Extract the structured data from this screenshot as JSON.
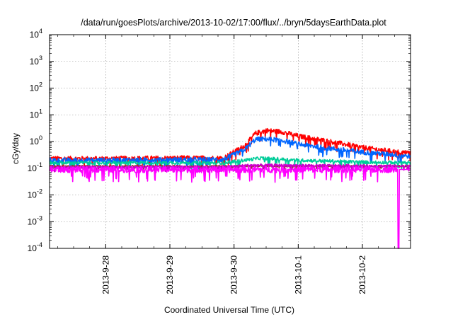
{
  "chart_data": {
    "type": "line",
    "title": "/data/run/goesPlots/archive/2013-10-02/17:00/flux/../bryn/5daysEarthData.plot",
    "xlabel": "Coordinated Universal Time (UTC)",
    "ylabel": "cGy/day",
    "y_scale": "log",
    "ylim": [
      0.0001,
      10000
    ],
    "xlim": [
      "2013-09-27T03:00",
      "2013-10-02T18:00"
    ],
    "x_ticks": [
      "2013-9-28",
      "2013-9-29",
      "2013-9-30",
      "2013-10-1",
      "2013-10-2"
    ],
    "y_ticks": [
      {
        "base": "10",
        "exp": "-4"
      },
      {
        "base": "10",
        "exp": "-3"
      },
      {
        "base": "10",
        "exp": "-2"
      },
      {
        "base": "10",
        "exp": "-1"
      },
      {
        "base": "10",
        "exp": "0"
      },
      {
        "base": "10",
        "exp": "1"
      },
      {
        "base": "10",
        "exp": "2"
      },
      {
        "base": "10",
        "exp": "3"
      },
      {
        "base": "10",
        "exp": "4"
      }
    ],
    "grid": true,
    "series": [
      {
        "color": "#ff0000",
        "noise": 0.09,
        "x": [
          "2013-09-27T03:00",
          "2013-09-28T00:00",
          "2013-09-29T00:00",
          "2013-09-29T20:00",
          "2013-09-30T04:00",
          "2013-09-30T08:00",
          "2013-09-30T12:00",
          "2013-09-30T18:00",
          "2013-10-01T00:00",
          "2013-10-01T12:00",
          "2013-10-02T00:00",
          "2013-10-02T12:00",
          "2013-10-02T18:00"
        ],
        "y": [
          0.23,
          0.23,
          0.24,
          0.24,
          0.7,
          2.0,
          2.6,
          2.3,
          1.6,
          1.0,
          0.6,
          0.42,
          0.38
        ]
      },
      {
        "color": "#0066ff",
        "noise": 0.09,
        "x": [
          "2013-09-27T03:00",
          "2013-09-28T00:00",
          "2013-09-29T00:00",
          "2013-09-29T20:00",
          "2013-09-30T04:00",
          "2013-09-30T08:00",
          "2013-09-30T12:00",
          "2013-09-30T18:00",
          "2013-10-01T00:00",
          "2013-10-01T12:00",
          "2013-10-02T00:00",
          "2013-10-02T12:00",
          "2013-10-02T18:00"
        ],
        "y": [
          0.2,
          0.2,
          0.21,
          0.21,
          0.5,
          1.2,
          1.25,
          1.1,
          0.8,
          0.55,
          0.4,
          0.32,
          0.28
        ]
      },
      {
        "color": "#00cc99",
        "noise": 0.06,
        "x": [
          "2013-09-27T03:00",
          "2013-09-29T20:00",
          "2013-09-30T04:00",
          "2013-09-30T10:00",
          "2013-10-01T00:00",
          "2013-10-02T00:00",
          "2013-10-02T18:00"
        ],
        "y": [
          0.16,
          0.16,
          0.2,
          0.24,
          0.2,
          0.17,
          0.16
        ]
      },
      {
        "color": "#993333",
        "noise": 0.03,
        "x": [
          "2013-09-27T03:00",
          "2013-10-02T18:00"
        ],
        "y": [
          0.12,
          0.12
        ]
      },
      {
        "color": "#cc00cc",
        "noise": 0.05,
        "x": [
          "2013-09-27T03:00",
          "2013-09-29T20:00",
          "2013-09-30T06:00",
          "2013-10-02T18:00"
        ],
        "y": [
          0.11,
          0.11,
          0.13,
          0.12
        ]
      },
      {
        "color": "#ff00ff",
        "noise": 0.12,
        "x": [
          "2013-09-27T03:00",
          "2013-10-02T12:00",
          "2013-10-02T13:00",
          "2013-10-02T13:30",
          "2013-10-02T18:00"
        ],
        "y": [
          0.09,
          0.09,
          0.09,
          0.0001,
          0.09
        ]
      }
    ]
  }
}
